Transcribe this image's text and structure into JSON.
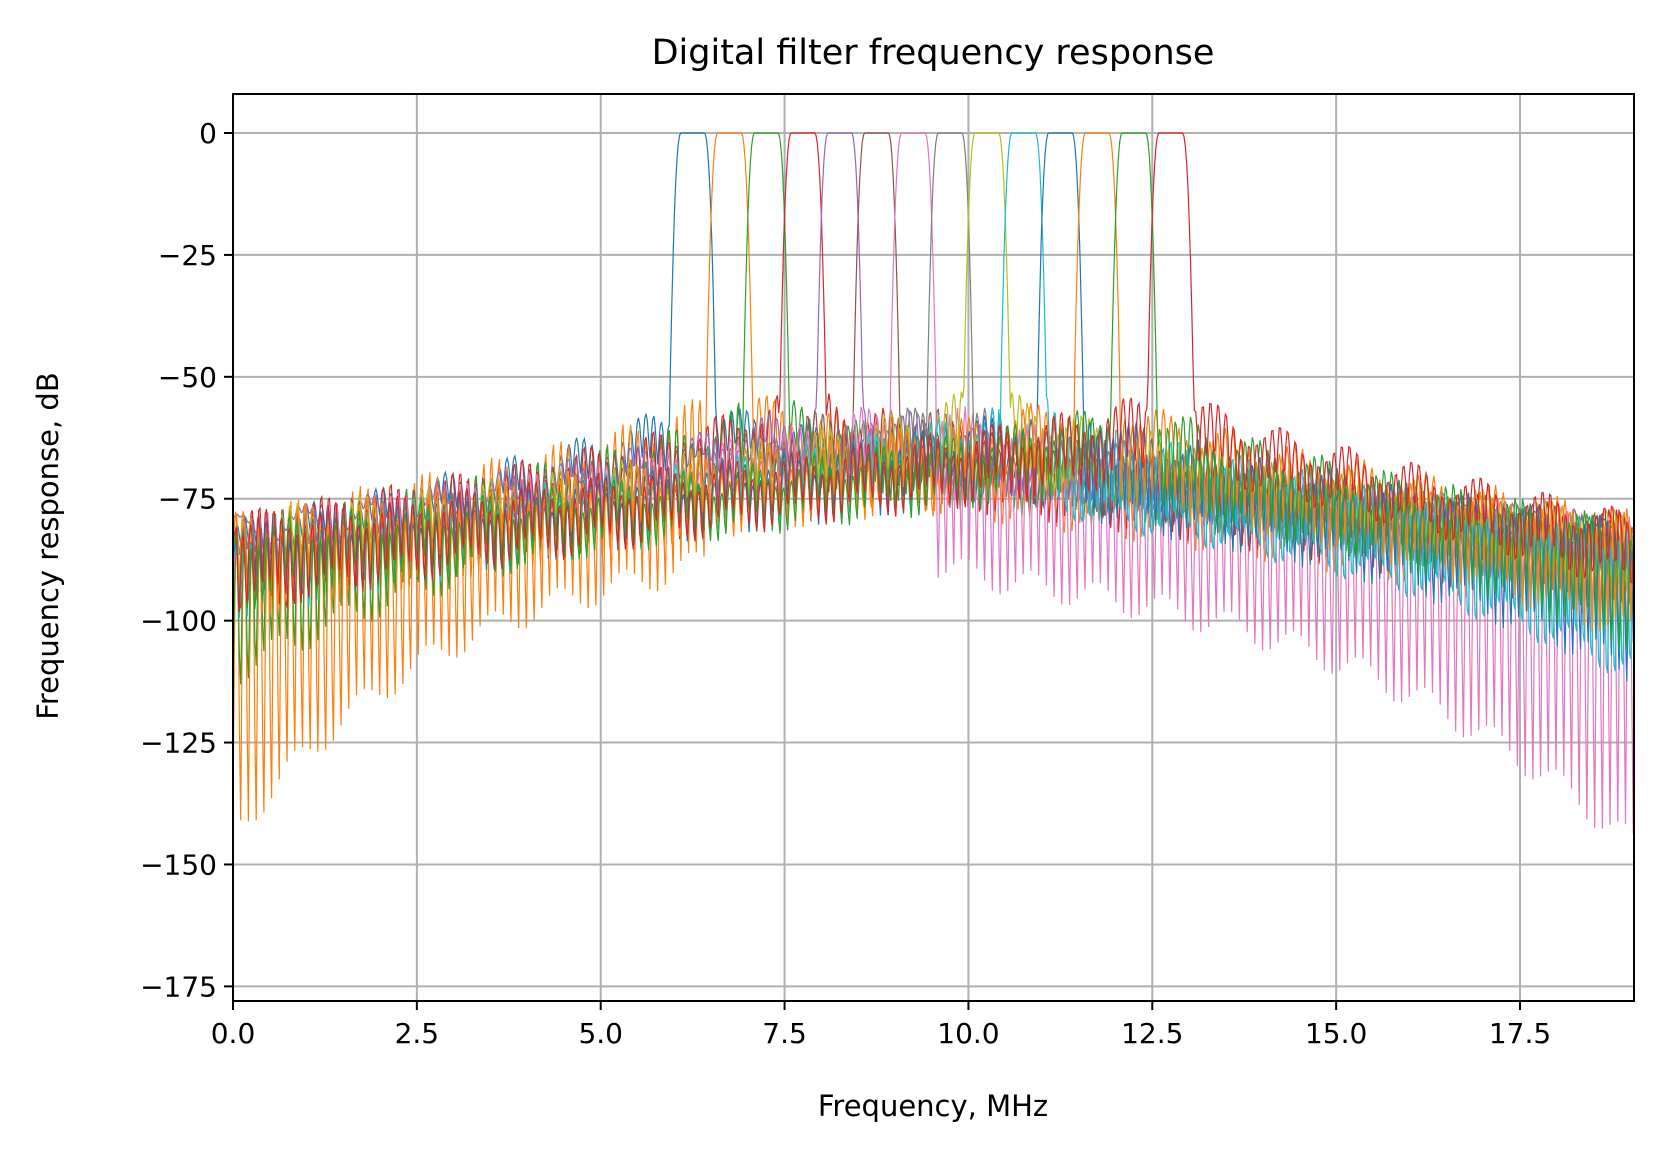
{
  "chart_data": {
    "type": "line",
    "title": "Digital filter frequency response",
    "xlabel": "Frequency, MHz",
    "ylabel": "Frequency response, dB",
    "xlim": [
      0,
      19.05
    ],
    "ylim": [
      -178,
      8
    ],
    "xticks": [
      0.0,
      2.5,
      5.0,
      7.5,
      10.0,
      12.5,
      15.0,
      17.5
    ],
    "xtick_labels": [
      "0.0",
      "2.5",
      "5.0",
      "7.5",
      "10.0",
      "12.5",
      "15.0",
      "17.5"
    ],
    "yticks": [
      0,
      -25,
      -50,
      -75,
      -100,
      -125,
      -150,
      -175
    ],
    "ytick_labels": [
      "0",
      "−25",
      "−50",
      "−75",
      "−100",
      "−125",
      "−150",
      "−175"
    ],
    "grid": true,
    "passband_level_db": 0,
    "series": [
      {
        "center": 6.25,
        "color": "#1f77b4",
        "sidelobe_peak": -57,
        "floor_low": -88,
        "floor_high": -85
      },
      {
        "center": 6.75,
        "color": "#ff7f0e",
        "sidelobe_peak": -55,
        "floor_low": -160,
        "floor_high": -105
      },
      {
        "center": 7.25,
        "color": "#2ca02c",
        "sidelobe_peak": -57,
        "floor_low": -120,
        "floor_high": -92
      },
      {
        "center": 7.75,
        "color": "#d62728",
        "sidelobe_peak": -55,
        "floor_low": -105,
        "floor_high": -100
      },
      {
        "center": 8.25,
        "color": "#9467bd",
        "sidelobe_peak": -56,
        "floor_low": -82,
        "floor_high": -90
      },
      {
        "center": 8.75,
        "color": "#8c564b",
        "sidelobe_peak": -56,
        "floor_low": -100,
        "floor_high": -98
      },
      {
        "center": 9.25,
        "color": "#e377c2",
        "sidelobe_peak": -56,
        "floor_low": -100,
        "floor_high": -157
      },
      {
        "center": 9.75,
        "color": "#7f7f7f",
        "sidelobe_peak": -57,
        "floor_low": -90,
        "floor_high": -95
      },
      {
        "center": 10.25,
        "color": "#bcbd22",
        "sidelobe_peak": -55,
        "floor_low": -95,
        "floor_high": -100
      },
      {
        "center": 10.75,
        "color": "#17becf",
        "sidelobe_peak": -57,
        "floor_low": -98,
        "floor_high": -122
      },
      {
        "center": 11.25,
        "color": "#1f77b4",
        "sidelobe_peak": -57,
        "floor_low": -96,
        "floor_high": -117
      },
      {
        "center": 11.75,
        "color": "#ff7f0e",
        "sidelobe_peak": -55,
        "floor_low": -100,
        "floor_high": -105
      },
      {
        "center": 12.25,
        "color": "#2ca02c",
        "sidelobe_peak": -57,
        "floor_low": -98,
        "floor_high": -110
      },
      {
        "center": 12.75,
        "color": "#d62728",
        "sidelobe_peak": -55,
        "floor_low": -100,
        "floor_high": -97
      }
    ]
  }
}
